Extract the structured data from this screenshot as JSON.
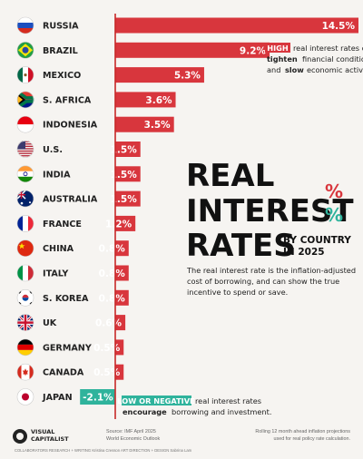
{
  "chart_data": {
    "type": "bar",
    "title_lines": [
      "REAL",
      "INTEREST",
      "RATES"
    ],
    "title_symbol": "%",
    "subtitle_lines": [
      "BY COUNTRY",
      "IN 2025"
    ],
    "categories": [
      "RUSSIA",
      "BRAZIL",
      "MEXICO",
      "S. AFRICA",
      "INDONESIA",
      "U.S.",
      "INDIA",
      "AUSTRALIA",
      "FRANCE",
      "CHINA",
      "ITALY",
      "S. KOREA",
      "UK",
      "GERMANY",
      "CANADA",
      "JAPAN"
    ],
    "values": [
      14.5,
      9.2,
      5.3,
      3.6,
      3.5,
      1.5,
      1.5,
      1.5,
      1.2,
      0.8,
      0.8,
      0.8,
      0.6,
      0.5,
      0.5,
      -2.1
    ],
    "value_labels": [
      "14.5%",
      "9.2%",
      "5.3%",
      "3.6%",
      "3.5%",
      "1.5%",
      "1.5%",
      "1.5%",
      "1.2%",
      "0.8%",
      "0.8%",
      "0.8%",
      "0.6%",
      "0.5%",
      "0.5%",
      "-2.1%"
    ],
    "colors": {
      "positive": "#d8363d",
      "negative": "#2fb39c",
      "axis": "#c62828",
      "title_percent": "#d8363d",
      "title_percent_alt": "#2fb39c"
    },
    "description_lines": [
      "The real interest rate is the inflation-adjusted",
      "cost of borrowing, and can show the true",
      "incentive to spend or save."
    ],
    "annotation_high": {
      "badge": "HIGH",
      "line1_rest": "real interest rates can",
      "line2_bold": "tighten",
      "line2_rest": "financial conditions",
      "line3_pre": "and",
      "line3_bold": "slow",
      "line3_rest": "economic activity."
    },
    "annotation_low": {
      "badge": "LOW OR NEGATIVE",
      "line1_rest": "real interest rates",
      "line2_bold": "encourage",
      "line2_rest": "borrowing and investment."
    },
    "flag_icons": [
      "russia-flag-icon",
      "brazil-flag-icon",
      "mexico-flag-icon",
      "south-africa-flag-icon",
      "indonesia-flag-icon",
      "us-flag-icon",
      "india-flag-icon",
      "australia-flag-icon",
      "france-flag-icon",
      "china-flag-icon",
      "italy-flag-icon",
      "south-korea-flag-icon",
      "uk-flag-icon",
      "germany-flag-icon",
      "canada-flag-icon",
      "japan-flag-icon"
    ]
  },
  "footer": {
    "brand_line1": "VISUAL",
    "brand_line2": "CAPITALIST",
    "source_line1": "Source: IMF April 2025",
    "source_line2": "World Economic Outlook",
    "note_line1": "Rolling 12 month ahead inflation projections",
    "note_line2": "used for real policy rate calculation.",
    "credits": "COLLABORATORS    RESEARCH + WRITING Kristina Cresson    ART DIRECTION + DESIGN Sabrina Lam"
  }
}
